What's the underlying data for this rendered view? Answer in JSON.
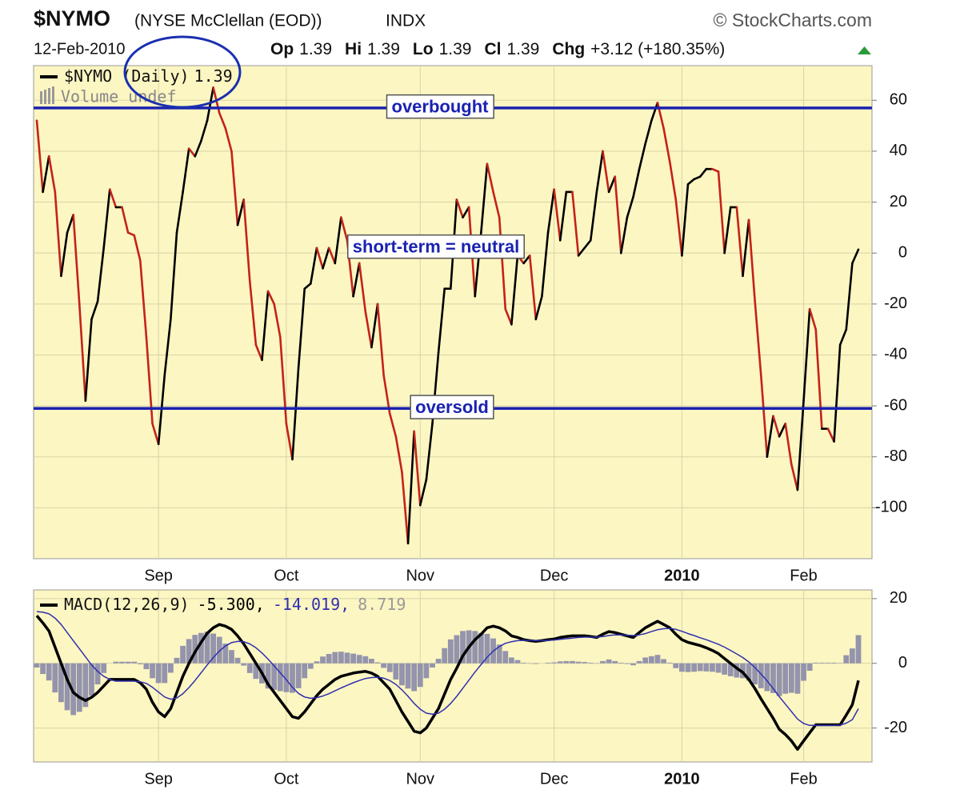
{
  "header": {
    "symbol": "$NYMO",
    "name": "(NYSE McClellan (EOD))",
    "exchange": "INDX",
    "credit": "© StockCharts.com",
    "date": "12-Feb-2010",
    "quote": [
      {
        "label": "Op",
        "value": "1.39"
      },
      {
        "label": "Hi",
        "value": "1.39"
      },
      {
        "label": "Lo",
        "value": "1.39"
      },
      {
        "label": "Cl",
        "value": "1.39"
      },
      {
        "label": "Chg",
        "value": "+3.12 (+180.35%)"
      }
    ]
  },
  "chart_data": [
    {
      "type": "line",
      "categories": [
        null,
        null,
        null,
        null,
        null,
        null,
        null,
        null,
        null,
        null,
        null,
        null,
        null,
        null,
        null,
        null,
        null,
        null,
        null,
        null,
        "Sep",
        null,
        null,
        null,
        null,
        null,
        null,
        null,
        null,
        null,
        null,
        null,
        null,
        null,
        null,
        null,
        null,
        null,
        null,
        null,
        null,
        "Oct",
        null,
        null,
        null,
        null,
        null,
        null,
        null,
        null,
        null,
        null,
        null,
        null,
        null,
        null,
        null,
        null,
        null,
        null,
        null,
        null,
        null,
        "Nov",
        null,
        null,
        null,
        null,
        null,
        null,
        null,
        null,
        null,
        null,
        null,
        null,
        null,
        null,
        null,
        null,
        null,
        null,
        null,
        null,
        null,
        "Dec",
        null,
        null,
        null,
        null,
        null,
        null,
        null,
        null,
        null,
        null,
        null,
        null,
        null,
        null,
        null,
        null,
        null,
        null,
        null,
        null,
        "2010",
        null,
        null,
        null,
        null,
        null,
        null,
        null,
        null,
        null,
        null,
        null,
        null,
        null,
        null,
        null,
        null,
        null,
        null,
        null,
        "Feb",
        null,
        null,
        null,
        null,
        null,
        null,
        null,
        null,
        null
      ],
      "series": [
        {
          "name": "$NYMO (Daily)",
          "last_label": "1.39",
          "up_color": "#000000",
          "down_color": "#c4221a",
          "values": [
            52,
            24,
            38,
            24,
            -9,
            8,
            15,
            -20,
            -58,
            -26,
            -19,
            2,
            25,
            18,
            18,
            8,
            7,
            -3,
            -33,
            -67,
            -75,
            -48,
            -26,
            8,
            24,
            41,
            38,
            44,
            52,
            65,
            55,
            49,
            40,
            11,
            21,
            -11,
            -36,
            -42,
            -15,
            -20,
            -33,
            -67,
            -81,
            -45,
            -14,
            -12,
            2,
            -6,
            2,
            -4,
            14,
            5,
            -17,
            -4,
            -23,
            -37,
            -20,
            -48,
            -63,
            -72,
            -86,
            -114,
            -70,
            -99,
            -89,
            -67,
            -39,
            -14,
            -14,
            21,
            14,
            18,
            -17,
            8,
            35,
            24,
            14,
            -22,
            -28,
            -1,
            -4,
            -1,
            -26,
            -17,
            8,
            25,
            5,
            24,
            24,
            -1,
            2,
            5,
            24,
            40,
            24,
            30,
            0,
            14,
            22,
            33,
            43,
            52,
            59,
            49,
            36,
            21,
            -1,
            27,
            29,
            30,
            33,
            33,
            32,
            0,
            18,
            18,
            -9,
            13,
            -19,
            -48,
            -80,
            -64,
            -72,
            -67,
            -83,
            -93,
            -58,
            -22,
            -30,
            -69,
            -69,
            -74,
            -36,
            -30,
            -4,
            1.39
          ]
        }
      ],
      "legend_note": "Volume undef",
      "ylim": [
        -120,
        73.6
      ],
      "yticks": [
        -100,
        -80,
        -60,
        -40,
        -20,
        0,
        20,
        40,
        60
      ],
      "grid": true,
      "ref_line_color": "#1a22b0",
      "annotations": [
        {
          "text": "overbought",
          "value": 57
        },
        {
          "text": "short-term = neutral",
          "value": 2
        },
        {
          "text": "oversold",
          "value": -61
        }
      ]
    },
    {
      "type": "macd",
      "categories": [
        null,
        null,
        null,
        null,
        null,
        null,
        null,
        null,
        null,
        null,
        null,
        null,
        null,
        null,
        null,
        null,
        null,
        null,
        null,
        null,
        "Sep",
        null,
        null,
        null,
        null,
        null,
        null,
        null,
        null,
        null,
        null,
        null,
        null,
        null,
        null,
        null,
        null,
        null,
        null,
        null,
        null,
        "Oct",
        null,
        null,
        null,
        null,
        null,
        null,
        null,
        null,
        null,
        null,
        null,
        null,
        null,
        null,
        null,
        null,
        null,
        null,
        null,
        null,
        null,
        "Nov",
        null,
        null,
        null,
        null,
        null,
        null,
        null,
        null,
        null,
        null,
        null,
        null,
        null,
        null,
        null,
        null,
        null,
        null,
        null,
        null,
        null,
        "Dec",
        null,
        null,
        null,
        null,
        null,
        null,
        null,
        null,
        null,
        null,
        null,
        null,
        null,
        null,
        null,
        null,
        null,
        null,
        null,
        null,
        "2010",
        null,
        null,
        null,
        null,
        null,
        null,
        null,
        null,
        null,
        null,
        null,
        null,
        null,
        null,
        null,
        null,
        null,
        null,
        null,
        "Feb",
        null,
        null,
        null,
        null,
        null,
        null,
        null,
        null,
        null
      ],
      "legend": "MACD(12,26,9)",
      "series": [
        {
          "style": "bar",
          "color": "#9494ac",
          "last_label": "8.719",
          "values": [
            -1.3,
            -3.3,
            -5.3,
            -9,
            -12,
            -14.5,
            -16,
            -15,
            -13.5,
            -10,
            -6.5,
            -3,
            0,
            0.5,
            0.5,
            0.5,
            0.5,
            -0.3,
            -1.8,
            -4.6,
            -6.1,
            -6.1,
            -2.9,
            1.7,
            5.4,
            7.5,
            8.8,
            9.4,
            9.8,
            9.2,
            8.2,
            6.1,
            4.1,
            1.7,
            -0.7,
            -3,
            -4.8,
            -6.2,
            -7.8,
            -8.2,
            -8.6,
            -8.9,
            -9.1,
            -7.7,
            -4.6,
            -1.7,
            0.6,
            2.1,
            2.9,
            3.5,
            3.6,
            3.3,
            3,
            2.6,
            2.2,
            1.4,
            0.3,
            -1.4,
            -2.7,
            -5,
            -6.8,
            -7.8,
            -8.6,
            -7.3,
            -4.6,
            -1.3,
            1.4,
            4.7,
            7.4,
            8.7,
            10,
            10.2,
            10,
            9.4,
            9.1,
            7.7,
            5.8,
            3.8,
            1.8,
            1,
            0.2,
            -0.1,
            -0.2,
            0,
            0.2,
            0.3,
            0.6,
            0.7,
            0.7,
            0.5,
            0.4,
            0.2,
            -0.1,
            0.7,
            1.2,
            0.7,
            0.2,
            -0.2,
            -0.6,
            0.7,
            1.8,
            2.2,
            2.6,
            1.3,
            0.2,
            -1.5,
            -2.6,
            -2.7,
            -2.6,
            -2.4,
            -2.5,
            -2.6,
            -2.9,
            -3.5,
            -4,
            -4.4,
            -4.6,
            -5.4,
            -6.5,
            -7.7,
            -8.6,
            -9.2,
            -10.1,
            -9.4,
            -9.1,
            -9.4,
            -5.4,
            -2.3,
            0.2,
            0.2,
            0.2,
            0.2,
            0.1,
            2.5,
            4.6,
            8.719
          ]
        },
        {
          "style": "line",
          "color": "#000000",
          "width": 3.5,
          "last_label": "-5.300,",
          "values": [
            14.7,
            12.5,
            10,
            5,
            0,
            -5,
            -9,
            -10.5,
            -11.5,
            -10.5,
            -9,
            -7,
            -5,
            -5,
            -5,
            -5,
            -5,
            -6,
            -8,
            -12,
            -15,
            -16.5,
            -14,
            -9,
            -4,
            0,
            3.5,
            6.5,
            9.3,
            11,
            12,
            11.5,
            10.5,
            8.5,
            6,
            3,
            0,
            -3,
            -6.5,
            -9,
            -11.5,
            -14,
            -16.5,
            -17,
            -15,
            -12.5,
            -10,
            -8,
            -6.5,
            -5,
            -4,
            -3.5,
            -3,
            -2.7,
            -2.5,
            -3,
            -4,
            -6,
            -8,
            -11.5,
            -15,
            -18,
            -21,
            -21.5,
            -20,
            -17,
            -14,
            -9.5,
            -5,
            -1.5,
            2.3,
            5,
            7.3,
            9,
            11,
            11.5,
            11,
            10,
            8.5,
            8,
            7.3,
            7,
            6.8,
            7,
            7.3,
            7.5,
            8,
            8.3,
            8.5,
            8.5,
            8.5,
            8.3,
            8,
            9,
            9.8,
            9.5,
            9,
            8.5,
            8,
            9.5,
            11,
            12,
            13,
            12,
            11,
            9,
            7.3,
            6.5,
            6,
            5.5,
            4.8,
            4,
            3,
            1.5,
            0,
            -1.5,
            -2.8,
            -5,
            -7.8,
            -11,
            -14,
            -17,
            -20.4,
            -22,
            -24,
            -26.6,
            -24,
            -21.5,
            -19,
            -19,
            -19,
            -19,
            -19,
            -16,
            -12.8,
            -5.3
          ]
        },
        {
          "style": "line",
          "color": "#3030b0",
          "width": 1.5,
          "last_label": "-14.019,",
          "values": [
            16,
            15.8,
            15.3,
            14,
            12,
            9.5,
            7,
            4.5,
            2,
            -0.5,
            -2.5,
            -4,
            -5,
            -5.5,
            -5.5,
            -5.5,
            -5.5,
            -5.7,
            -6.2,
            -7.4,
            -8.9,
            -10.4,
            -11.1,
            -10.7,
            -9.4,
            -7.5,
            -5.3,
            -2.9,
            -0.5,
            1.8,
            3.8,
            5.4,
            6.4,
            6.8,
            6.7,
            6,
            4.8,
            3.2,
            1.3,
            -0.8,
            -2.9,
            -5.1,
            -7.4,
            -9.3,
            -10.4,
            -10.8,
            -10.6,
            -10.1,
            -9.4,
            -8.5,
            -7.6,
            -6.8,
            -6,
            -5.3,
            -4.7,
            -4.4,
            -4.3,
            -4.6,
            -5.3,
            -6.5,
            -8.2,
            -10.2,
            -12.4,
            -14.2,
            -15.4,
            -15.7,
            -15.4,
            -14.2,
            -12.4,
            -10.2,
            -7.7,
            -5.2,
            -2.7,
            -0.4,
            1.9,
            3.8,
            5.2,
            6.2,
            6.7,
            7,
            7.1,
            7.1,
            7,
            7,
            7.1,
            7.2,
            7.4,
            7.6,
            7.8,
            8,
            8.1,
            8.1,
            8.1,
            8.3,
            8.6,
            8.8,
            8.8,
            8.7,
            8.6,
            8.8,
            9.2,
            9.8,
            10.4,
            10.7,
            10.8,
            10.5,
            9.9,
            9.2,
            8.6,
            7.9,
            7.3,
            6.6,
            5.9,
            5,
            4,
            2.9,
            1.8,
            0.4,
            -1.3,
            -3.3,
            -5.4,
            -7.8,
            -10.3,
            -12.6,
            -14.9,
            -17.2,
            -18.6,
            -19.2,
            -19.2,
            -19.2,
            -19.2,
            -19.2,
            -19.1,
            -18.5,
            -17.4,
            -14.019
          ]
        }
      ],
      "ylim": [
        -30.5,
        22.7
      ],
      "yticks": [
        -20,
        0,
        20
      ],
      "grid": true
    }
  ]
}
